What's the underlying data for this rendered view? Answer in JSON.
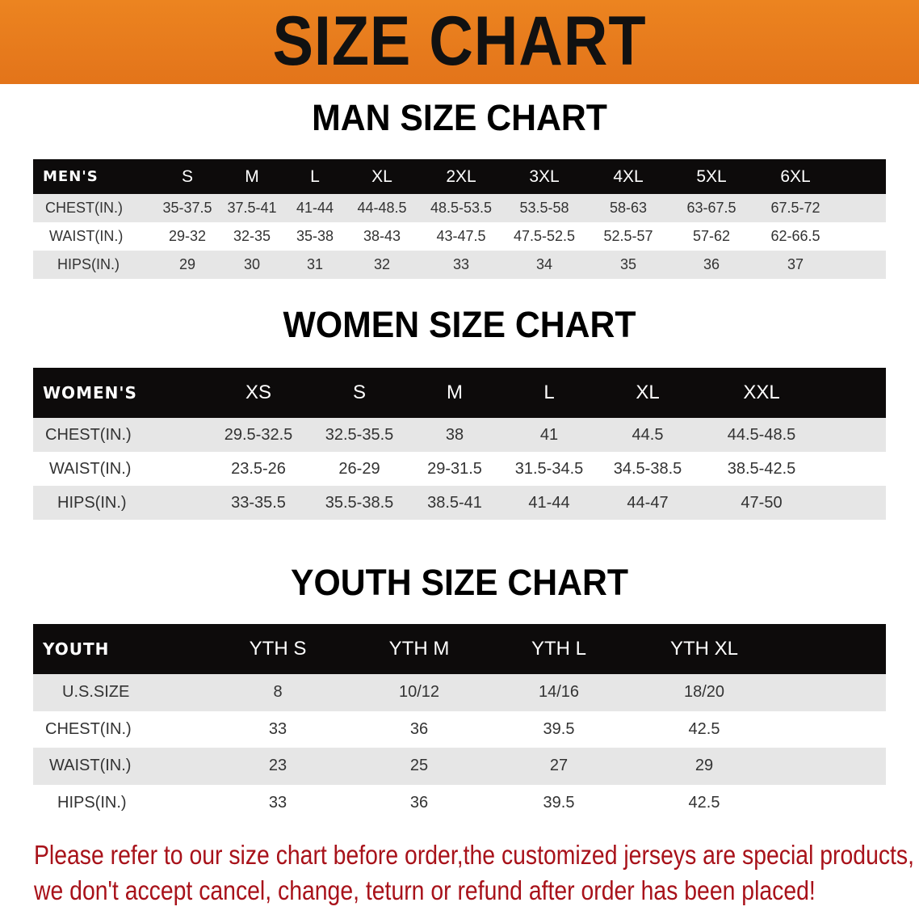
{
  "banner_title": "SIZE CHART",
  "colors": {
    "banner": "#e8791a",
    "header_row": "#0d0b0b",
    "stripe": "#e6e6e6",
    "notice": "#a8121a"
  },
  "men": {
    "title": "MAN SIZE CHART",
    "header": [
      "MEN'S",
      "S",
      "M",
      "L",
      "XL",
      "2XL",
      "3XL",
      "4XL",
      "5XL",
      "6XL"
    ],
    "rows": [
      [
        "CHEST(IN.)",
        "35-37.5",
        "37.5-41",
        "41-44",
        "44-48.5",
        "48.5-53.5",
        "53.5-58",
        "58-63",
        "63-67.5",
        "67.5-72"
      ],
      [
        "WAIST(IN.)",
        "29-32",
        "32-35",
        "35-38",
        "38-43",
        "43-47.5",
        "47.5-52.5",
        "52.5-57",
        "57-62",
        "62-66.5"
      ],
      [
        "HIPS(IN.)",
        "29",
        "30",
        "31",
        "32",
        "33",
        "34",
        "35",
        "36",
        "37"
      ]
    ]
  },
  "women": {
    "title": "WOMEN SIZE CHART",
    "header": [
      "WOMEN'S",
      "XS",
      "S",
      "M",
      "L",
      "XL",
      "XXL"
    ],
    "rows": [
      [
        "CHEST(IN.)",
        "29.5-32.5",
        "32.5-35.5",
        "38",
        "41",
        "44.5",
        "44.5-48.5"
      ],
      [
        "WAIST(IN.)",
        "23.5-26",
        "26-29",
        "29-31.5",
        "31.5-34.5",
        "34.5-38.5",
        "38.5-42.5"
      ],
      [
        "HIPS(IN.)",
        "33-35.5",
        "35.5-38.5",
        "38.5-41",
        "41-44",
        "44-47",
        "47-50"
      ]
    ]
  },
  "youth": {
    "title": "YOUTH SIZE CHART",
    "header": [
      "YOUTH",
      "YTH S",
      "YTH M",
      "YTH L",
      "YTH XL"
    ],
    "rows": [
      [
        "U.S.SIZE",
        "8",
        "10/12",
        "14/16",
        "18/20"
      ],
      [
        "CHEST(IN.)",
        "33",
        "36",
        "39.5",
        "42.5"
      ],
      [
        "WAIST(IN.)",
        "23",
        "25",
        "27",
        "29"
      ],
      [
        "HIPS(IN.)",
        "33",
        "36",
        "39.5",
        "42.5"
      ]
    ]
  },
  "notice": [
    "Please refer to our size chart before order,the customized jerseys are special products,",
    "we don't accept cancel, change, teturn or refund after order has been placed!"
  ]
}
